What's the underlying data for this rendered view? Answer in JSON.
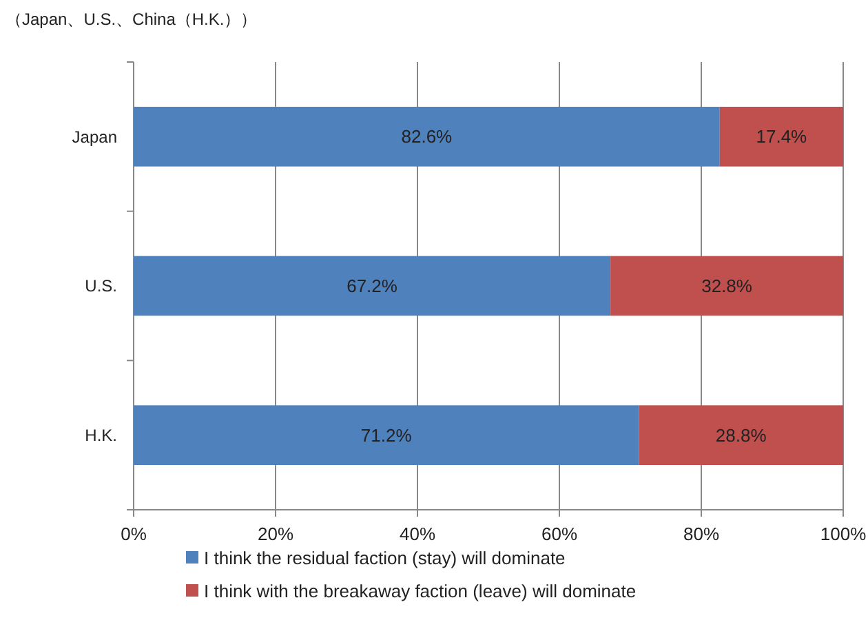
{
  "chart_data": {
    "type": "bar",
    "title": "（Japan、U.S.、China（H.K.））",
    "orientation": "horizontal",
    "stacked": true,
    "categories": [
      "Japan",
      "U.S.",
      "H.K."
    ],
    "series": [
      {
        "name": "I think the residual faction (stay) will dominate",
        "color": "#4f81bd",
        "values": [
          82.6,
          67.2,
          71.2
        ],
        "value_labels": [
          "82.6%",
          "67.2%",
          "71.2%"
        ]
      },
      {
        "name": "I think with the breakaway faction (leave) will dominate",
        "color": "#c0504d",
        "values": [
          17.4,
          32.8,
          28.8
        ],
        "value_labels": [
          "17.4%",
          "32.8%",
          "28.8%"
        ]
      }
    ],
    "xlim": [
      0,
      100
    ],
    "xticks": [
      {
        "value": 0,
        "label": "0%"
      },
      {
        "value": 20,
        "label": "20%"
      },
      {
        "value": 40,
        "label": "40%"
      },
      {
        "value": 60,
        "label": "60%"
      },
      {
        "value": 80,
        "label": "80%"
      },
      {
        "value": 100,
        "label": "100%"
      }
    ],
    "grid": "x",
    "legend": "bottom"
  }
}
